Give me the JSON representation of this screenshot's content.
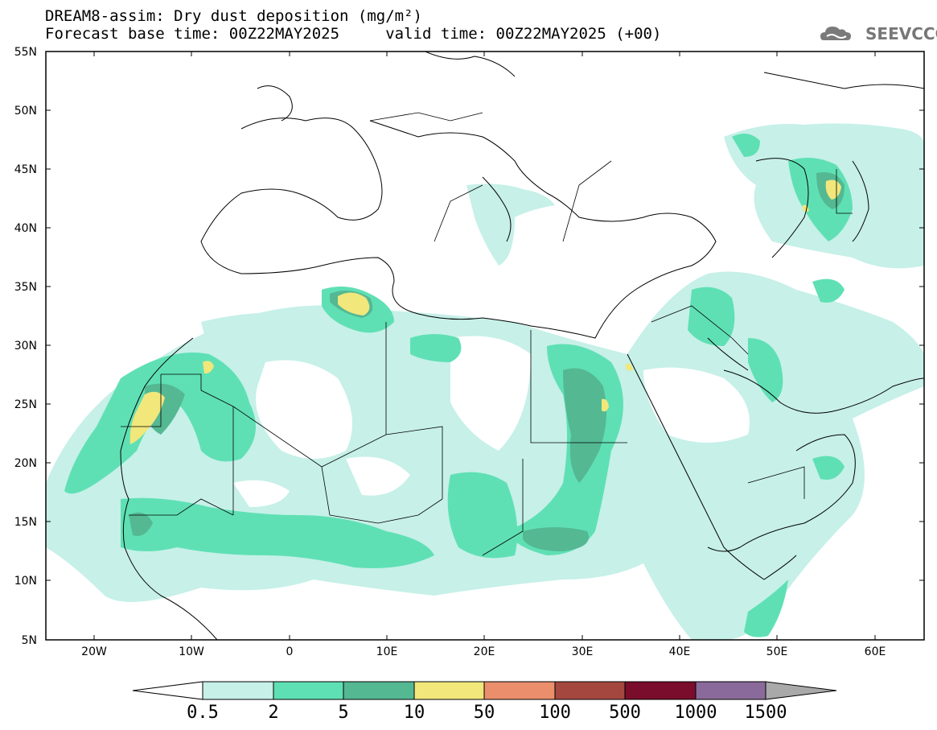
{
  "header": {
    "title_line1": "DREAM8-assim: Dry dust deposition (mg/m²)",
    "title_line2": "Forecast base time: 00Z22MAY2025     valid time: 00Z22MAY2025 (+00)",
    "logo_text": "SEEVCCC"
  },
  "map": {
    "lon_range": [
      -25,
      65
    ],
    "lat_range": [
      5,
      55
    ],
    "lat_ticks": [
      "55N",
      "50N",
      "45N",
      "40N",
      "35N",
      "30N",
      "25N",
      "20N",
      "15N",
      "10N",
      "5N"
    ],
    "lon_ticks": [
      "20W",
      "10W",
      "0",
      "10E",
      "20E",
      "30E",
      "40E",
      "50E",
      "60E"
    ]
  },
  "colorbar": {
    "labels": [
      "0.5",
      "2",
      "5",
      "10",
      "50",
      "100",
      "500",
      "1000",
      "1500"
    ],
    "colors": [
      "#c6f0e8",
      "#5fe0b4",
      "#54b893",
      "#f1e77b",
      "#ea8e6b",
      "#a4483f",
      "#7a0c2c",
      "#8a6a9a",
      "#a9a9a9"
    ]
  },
  "colors": {
    "level_0_5": "#c6f0e8",
    "level_2": "#5fe0b4",
    "level_5": "#54b893",
    "level_10": "#f1e77b"
  }
}
